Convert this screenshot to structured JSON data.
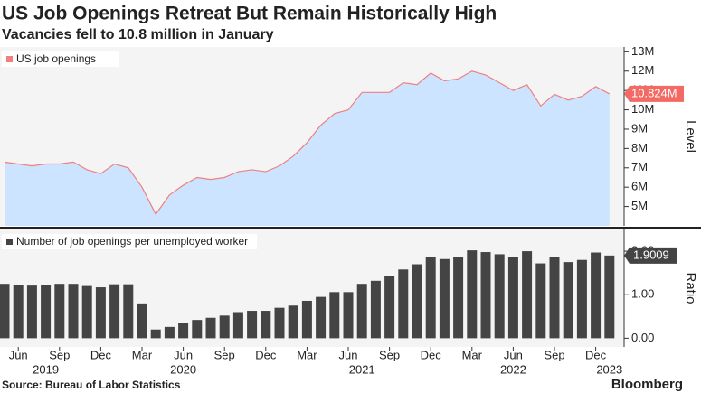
{
  "header": {
    "title": "US Job Openings Retreat But Remain Historically High",
    "subtitle": "Vacancies fell to 10.8 million in January"
  },
  "source": "Source: Bureau of Labor Statistics",
  "brand": "Bloomberg",
  "chart_data": [
    {
      "type": "area",
      "axis_label": "Level",
      "x": [
        "2019-05",
        "2019-06",
        "2019-07",
        "2019-08",
        "2019-09",
        "2019-10",
        "2019-11",
        "2019-12",
        "2020-01",
        "2020-02",
        "2020-03",
        "2020-04",
        "2020-05",
        "2020-06",
        "2020-07",
        "2020-08",
        "2020-09",
        "2020-10",
        "2020-11",
        "2020-12",
        "2021-01",
        "2021-02",
        "2021-03",
        "2021-04",
        "2021-05",
        "2021-06",
        "2021-07",
        "2021-08",
        "2021-09",
        "2021-10",
        "2021-11",
        "2021-12",
        "2022-01",
        "2022-02",
        "2022-03",
        "2022-04",
        "2022-05",
        "2022-06",
        "2022-07",
        "2022-08",
        "2022-09",
        "2022-10",
        "2022-11",
        "2022-12",
        "2023-01"
      ],
      "series": [
        {
          "name": "US job openings",
          "color": "#f08080",
          "fill": "#cce4ff",
          "values": [
            7.3,
            7.2,
            7.1,
            7.2,
            7.2,
            7.3,
            6.9,
            6.7,
            7.2,
            7.0,
            6.0,
            4.6,
            5.6,
            6.1,
            6.5,
            6.4,
            6.5,
            6.8,
            6.9,
            6.8,
            7.1,
            7.6,
            8.3,
            9.2,
            9.8,
            10.0,
            10.9,
            10.9,
            10.9,
            11.4,
            11.3,
            11.9,
            11.5,
            11.6,
            12.0,
            11.8,
            11.4,
            11.0,
            11.3,
            10.2,
            10.8,
            10.5,
            10.7,
            11.2,
            10.824
          ],
          "value_labels": [
            null,
            null,
            null,
            null,
            null,
            null,
            null,
            null,
            null,
            null,
            null,
            null,
            null,
            null,
            null,
            null,
            null,
            null,
            null,
            null,
            null,
            null,
            null,
            null,
            null,
            null,
            null,
            null,
            null,
            null,
            null,
            null,
            null,
            null,
            null,
            null,
            null,
            null,
            null,
            null,
            null,
            null,
            null,
            null,
            "10.824M"
          ]
        }
      ],
      "ylim": [
        4,
        13.25
      ],
      "yticks": [
        {
          "value": 5,
          "label": "5M"
        },
        {
          "value": 6,
          "label": "6M"
        },
        {
          "value": 7,
          "label": "7M"
        },
        {
          "value": 8,
          "label": "8M"
        },
        {
          "value": 9,
          "label": "9M"
        },
        {
          "value": 10,
          "label": "10M"
        },
        {
          "value": 11,
          "label": "11M"
        },
        {
          "value": 12,
          "label": "12M"
        },
        {
          "value": 13,
          "label": "13M"
        }
      ]
    },
    {
      "type": "bar",
      "axis_label": "Ratio",
      "x": [
        "2019-05",
        "2019-06",
        "2019-07",
        "2019-08",
        "2019-09",
        "2019-10",
        "2019-11",
        "2019-12",
        "2020-01",
        "2020-02",
        "2020-03",
        "2020-04",
        "2020-05",
        "2020-06",
        "2020-07",
        "2020-08",
        "2020-09",
        "2020-10",
        "2020-11",
        "2020-12",
        "2021-01",
        "2021-02",
        "2021-03",
        "2021-04",
        "2021-05",
        "2021-06",
        "2021-07",
        "2021-08",
        "2021-09",
        "2021-10",
        "2021-11",
        "2021-12",
        "2022-01",
        "2022-02",
        "2022-03",
        "2022-04",
        "2022-05",
        "2022-06",
        "2022-07",
        "2022-08",
        "2022-09",
        "2022-10",
        "2022-11",
        "2022-12",
        "2023-01"
      ],
      "series": [
        {
          "name": "Number of job openings per unemployed worker",
          "color": "#444444",
          "values": [
            1.25,
            1.23,
            1.21,
            1.23,
            1.25,
            1.25,
            1.2,
            1.17,
            1.24,
            1.24,
            0.8,
            0.2,
            0.26,
            0.35,
            0.42,
            0.47,
            0.52,
            0.6,
            0.63,
            0.63,
            0.7,
            0.75,
            0.86,
            0.95,
            1.06,
            1.06,
            1.25,
            1.32,
            1.42,
            1.58,
            1.7,
            1.87,
            1.82,
            1.87,
            2.02,
            1.98,
            1.93,
            1.86,
            2.0,
            1.72,
            1.86,
            1.75,
            1.8,
            1.97,
            1.9009
          ]
        }
      ],
      "ylim": [
        -0.2,
        2.5
      ],
      "yticks": [
        {
          "value": 0,
          "label": "0.00"
        },
        {
          "value": 1,
          "label": "1.00"
        },
        {
          "value": 2,
          "label": "2.00"
        }
      ],
      "xticks": [
        {
          "value": "2019-06",
          "label": "Jun"
        },
        {
          "value": "2019-09",
          "label": "Sep"
        },
        {
          "value": "2019-12",
          "label": "Dec"
        },
        {
          "value": "2020-03",
          "label": "Mar"
        },
        {
          "value": "2020-06",
          "label": "Jun"
        },
        {
          "value": "2020-09",
          "label": "Sep"
        },
        {
          "value": "2020-12",
          "label": "Dec"
        },
        {
          "value": "2021-03",
          "label": "Mar"
        },
        {
          "value": "2021-06",
          "label": "Jun"
        },
        {
          "value": "2021-09",
          "label": "Sep"
        },
        {
          "value": "2021-12",
          "label": "Dec"
        },
        {
          "value": "2022-03",
          "label": "Mar"
        },
        {
          "value": "2022-06",
          "label": "Jun"
        },
        {
          "value": "2022-09",
          "label": "Sep"
        },
        {
          "value": "2022-12",
          "label": "Dec"
        }
      ],
      "year_ticks": [
        {
          "value": "2019-08",
          "label": "2019"
        },
        {
          "value": "2020-06",
          "label": "2020"
        },
        {
          "value": "2021-07",
          "label": "2021"
        },
        {
          "value": "2022-06",
          "label": "2022"
        },
        {
          "value": "2023-01",
          "label": "2023"
        }
      ]
    }
  ]
}
